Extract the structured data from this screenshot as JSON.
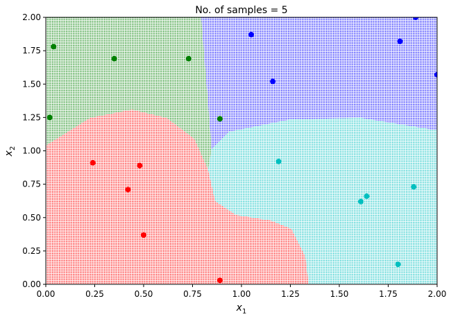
{
  "chart_data": {
    "type": "scatter",
    "title": "No. of samples = 5",
    "xlabel": "x",
    "xlabel_sub": "1",
    "ylabel": "x",
    "ylabel_sub": "2",
    "xlim": [
      0,
      2
    ],
    "ylim": [
      0,
      2
    ],
    "xticks": [
      "0.00",
      "0.25",
      "0.50",
      "0.75",
      "1.00",
      "1.25",
      "1.50",
      "1.75",
      "2.00"
    ],
    "yticks": [
      "0.00",
      "0.25",
      "0.50",
      "0.75",
      "1.00",
      "1.25",
      "1.50",
      "1.75",
      "2.00"
    ],
    "grid": false,
    "legend": "none",
    "background": "dotted decision regions colored by predicted class",
    "series": [
      {
        "color": "#008000",
        "points": [
          [
            0.04,
            1.78
          ],
          [
            0.35,
            1.69
          ],
          [
            0.73,
            1.69
          ],
          [
            0.02,
            1.25
          ],
          [
            0.89,
            1.24
          ]
        ]
      },
      {
        "color": "#0000ff",
        "points": [
          [
            1.05,
            1.87
          ],
          [
            1.89,
            2.0
          ],
          [
            1.81,
            1.82
          ],
          [
            2.0,
            1.57
          ],
          [
            1.16,
            1.52
          ]
        ]
      },
      {
        "color": "#ff0000",
        "points": [
          [
            0.24,
            0.91
          ],
          [
            0.48,
            0.89
          ],
          [
            0.42,
            0.71
          ],
          [
            0.5,
            0.37
          ],
          [
            0.89,
            0.03
          ]
        ]
      },
      {
        "color": "#00bfbf",
        "points": [
          [
            1.19,
            0.92
          ],
          [
            1.88,
            0.73
          ],
          [
            1.64,
            0.66
          ],
          [
            1.61,
            0.62
          ],
          [
            1.8,
            0.15
          ]
        ]
      }
    ]
  }
}
